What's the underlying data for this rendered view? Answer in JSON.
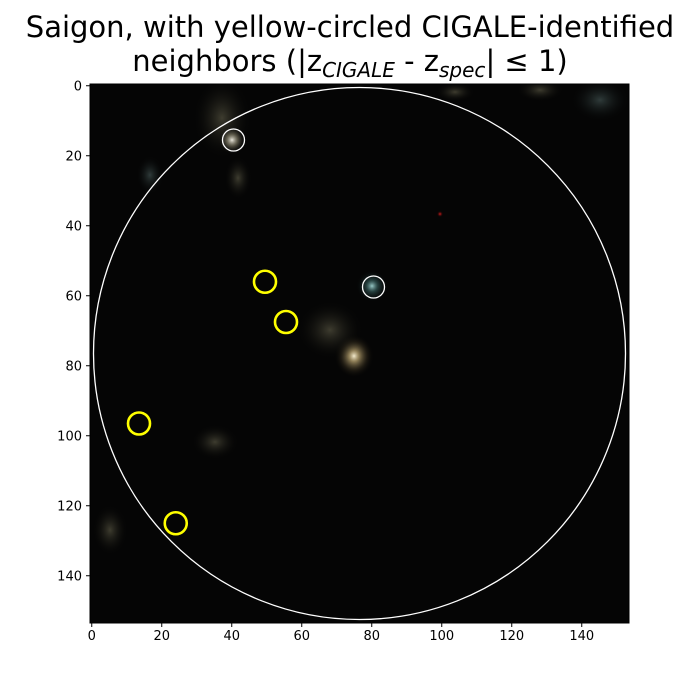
{
  "figure": {
    "title_line1": "Saigon, with yellow-circled CIGALE-identified",
    "title_line2_prefix": "neighbors (|z",
    "title_sub1": "CIGALE",
    "title_mid": " - z",
    "title_sub2": "spec",
    "title_suffix": "| ≤ 1)"
  },
  "image": {
    "type": "astronomical-cutout",
    "extent": [
      0,
      154
    ],
    "background_color": "#050505"
  },
  "axes": {
    "x_ticks": [
      0,
      20,
      40,
      60,
      80,
      100,
      120,
      140
    ],
    "y_ticks": [
      0,
      20,
      40,
      60,
      80,
      100,
      120,
      140
    ],
    "x_range": [
      -0.5,
      153.5
    ],
    "y_range": [
      -0.5,
      153.5
    ],
    "y_inverted": true
  },
  "search_aperture": {
    "x": 76.5,
    "y": 76.5,
    "r": 76,
    "color": "#ffffff"
  },
  "white_circled_sources": [
    {
      "x": 40.5,
      "y": 15.5
    },
    {
      "x": 80.5,
      "y": 57.5
    }
  ],
  "yellow_circled_neighbors": [
    {
      "x": 49.5,
      "y": 56
    },
    {
      "x": 55.5,
      "y": 67.5
    },
    {
      "x": 13.5,
      "y": 96.5
    },
    {
      "x": 24,
      "y": 125
    }
  ],
  "colors": {
    "yellow_marker": "#ffff00",
    "white_marker": "#ffffff"
  }
}
